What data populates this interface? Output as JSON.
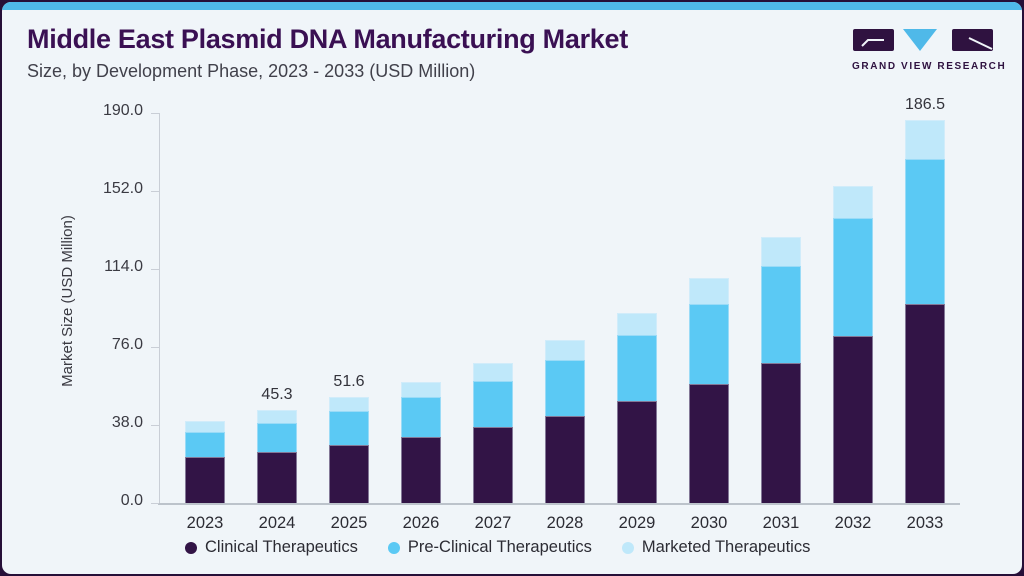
{
  "header": {
    "title": "Middle East Plasmid DNA Manufacturing Market",
    "subtitle": "Size, by Development Phase, 2023 - 2033 (USD Million)",
    "logo_text": "GRAND VIEW RESEARCH"
  },
  "colors": {
    "accent_bar": "#4fb9e9",
    "frame": "#260f38",
    "card_bg": "#f0f5f9",
    "title_text": "#3a1053",
    "subtitle_text": "#41414b",
    "axis_line": "#c9ced6",
    "axis_text": "#3a3a42",
    "logo_dark": "#2f1240",
    "logo_blue": "#4fb9e9"
  },
  "chart_data": {
    "type": "bar",
    "stacked": true,
    "title": "Middle East Plasmid DNA Manufacturing Market Size, by Development Phase, 2023 - 2033 (USD Million)",
    "ylabel": "Market Size (USD Million)",
    "xlabel": "",
    "categories": [
      "2023",
      "2024",
      "2025",
      "2026",
      "2027",
      "2028",
      "2029",
      "2030",
      "2031",
      "2032",
      "2033"
    ],
    "series": [
      {
        "name": "Clinical Therapeutics",
        "color": "#321446",
        "values": [
          22.2,
          24.8,
          28.1,
          32.0,
          36.9,
          42.5,
          49.8,
          57.8,
          68.1,
          81.4,
          96.9
        ]
      },
      {
        "name": "Pre-Clinical Therapeutics",
        "color": "#5bc9f4",
        "values": [
          12.5,
          14.2,
          16.8,
          19.6,
          22.7,
          27.3,
          32.2,
          39.4,
          47.6,
          57.3,
          70.7
        ]
      },
      {
        "name": "Marketed Therapeutics",
        "color": "#bfe8fa",
        "values": [
          5.3,
          6.3,
          6.7,
          7.5,
          8.4,
          9.4,
          10.8,
          12.2,
          13.8,
          15.9,
          18.9
        ]
      }
    ],
    "totals": [
      40.0,
      45.3,
      51.6,
      59.1,
      68.0,
      79.2,
      92.8,
      109.4,
      129.5,
      154.6,
      186.5
    ],
    "value_labels": [
      "",
      "45.3",
      "51.6",
      "",
      "",
      "",
      "",
      "",
      "",
      "",
      "186.5"
    ],
    "ylim": [
      0,
      190
    ],
    "yticks": [
      0,
      38,
      76,
      114,
      152,
      190
    ],
    "ytick_labels": [
      "0.0",
      "38.0",
      "76.0",
      "114.0",
      "152.0",
      "190.0"
    ],
    "grid": false,
    "legend_position": "bottom"
  }
}
